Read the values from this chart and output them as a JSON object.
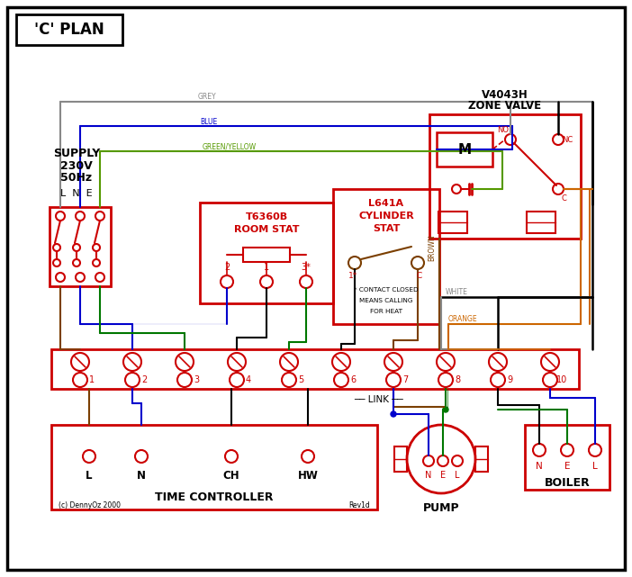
{
  "bg": "#ffffff",
  "RED": "#cc0000",
  "BLUE": "#0000cc",
  "GREEN": "#007700",
  "GREY": "#888888",
  "BROWN": "#7b3f00",
  "ORANGE": "#cc6600",
  "BLACK": "#000000",
  "GY": "#559900",
  "title": "'C' PLAN",
  "zone_v1": "V4043H",
  "zone_v2": "ZONE VALVE",
  "rs1": "T6360B",
  "rs2": "ROOM STAT",
  "cs1": "L641A",
  "cs2": "CYLINDER",
  "cs3": "STAT",
  "time_ctrl": "TIME CONTROLLER",
  "pump_lbl": "PUMP",
  "boiler_lbl": "BOILER",
  "link_lbl": "LINK",
  "terms": [
    "1",
    "2",
    "3",
    "4",
    "5",
    "6",
    "7",
    "8",
    "9",
    "10"
  ],
  "tc_terms": [
    "L",
    "N",
    "CH",
    "HW"
  ],
  "pump_terms": [
    "N",
    "E",
    "L"
  ],
  "boiler_terms": [
    "N",
    "E",
    "L"
  ],
  "copyright": "(c) DennyOz 2000",
  "rev": "Rev1d",
  "supply1": "SUPPLY",
  "supply2": "230V",
  "supply3": "50Hz",
  "lne": "L  N  E",
  "lbl_grey": "GREY",
  "lbl_blue": "BLUE",
  "lbl_gy": "GREEN/YELLOW",
  "lbl_brown": "BROWN",
  "lbl_white": "WHITE",
  "lbl_orange": "ORANGE"
}
